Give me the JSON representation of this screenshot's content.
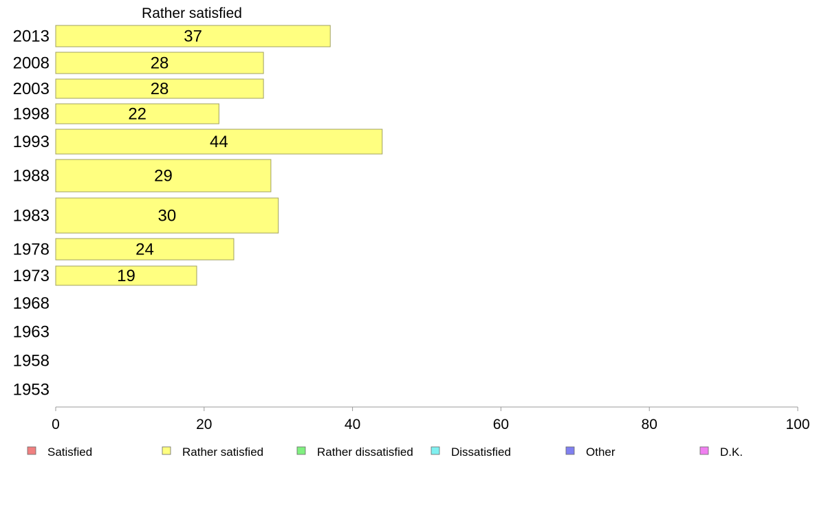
{
  "chart_data": {
    "type": "bar",
    "orientation": "horizontal",
    "title": "Rather satisfied",
    "categories": [
      "2013",
      "2008",
      "2003",
      "1998",
      "1993",
      "1988",
      "1983",
      "1978",
      "1973",
      "1968",
      "1963",
      "1958",
      "1953"
    ],
    "series": [
      {
        "name": "Rather satisfied",
        "values": [
          37,
          28,
          28,
          22,
          44,
          29,
          30,
          24,
          19,
          null,
          null,
          null,
          null
        ]
      }
    ],
    "xlim": [
      0,
      100
    ],
    "xticks": [
      0,
      20,
      40,
      60,
      80,
      100
    ],
    "grid": false,
    "legend_position": "bottom",
    "legend": [
      {
        "label": "Satisfied",
        "color": "#f08080"
      },
      {
        "label": "Rather satisfied",
        "color": "#ffff80"
      },
      {
        "label": "Rather dissatisfied",
        "color": "#80f080"
      },
      {
        "label": "Dissatisfied",
        "color": "#80f0f0"
      },
      {
        "label": "Other",
        "color": "#8080f0"
      },
      {
        "label": "D.K.",
        "color": "#f080f0"
      }
    ],
    "bar_color": "#ffff80",
    "bar_stroke": "#a0a060"
  }
}
